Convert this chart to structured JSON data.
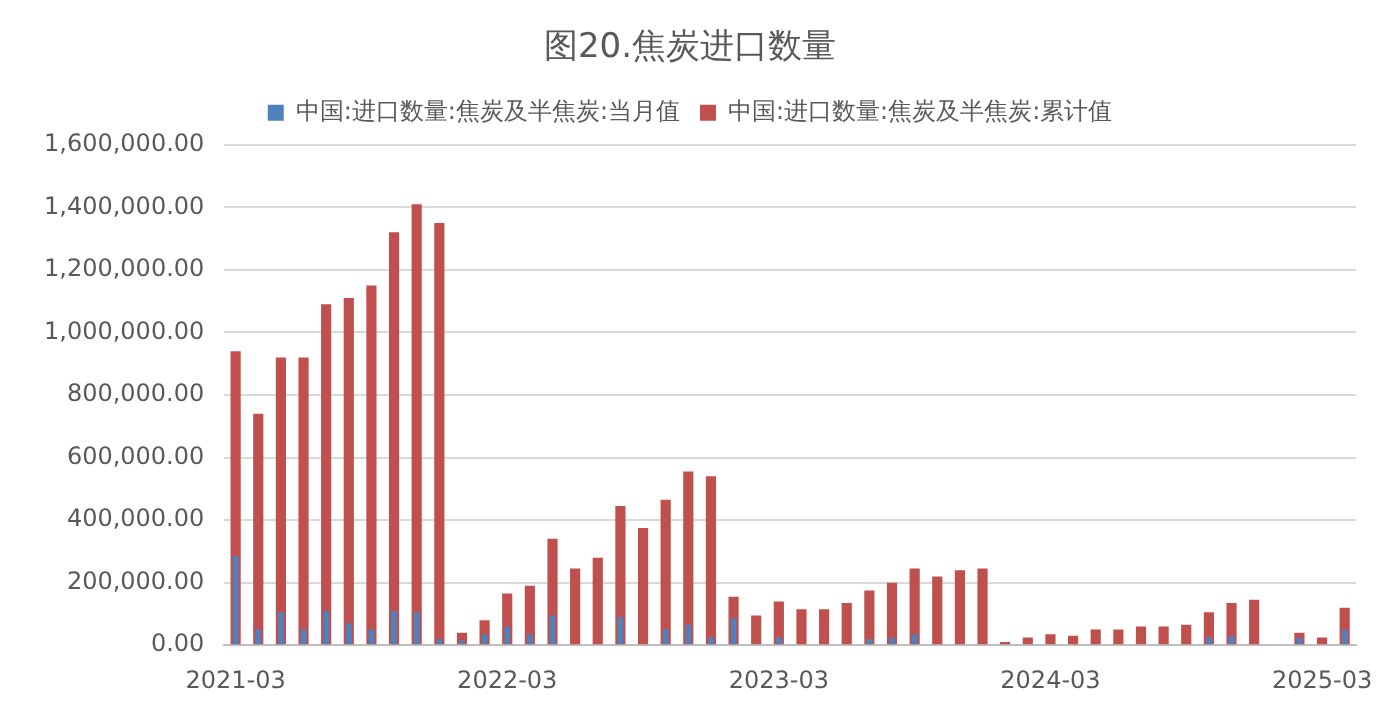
{
  "chart_data": {
    "type": "bar",
    "title": "图20.焦炭进口数量",
    "categories": [
      "2021-03",
      null,
      null,
      null,
      null,
      null,
      null,
      null,
      null,
      null,
      null,
      null,
      "2022-03",
      null,
      null,
      null,
      null,
      null,
      null,
      null,
      null,
      null,
      null,
      null,
      "2023-03",
      null,
      null,
      null,
      null,
      null,
      null,
      null,
      null,
      null,
      null,
      null,
      "2024-03",
      null,
      null,
      null,
      null,
      null,
      null,
      null,
      null,
      null,
      null,
      null,
      "2025-03",
      null
    ],
    "series": [
      {
        "name": "中国:进口数量:焦炭及半焦炭:当月值",
        "color": "#4f81bd",
        "values": [
          285000,
          50000,
          105000,
          50000,
          110000,
          70000,
          50000,
          110000,
          105000,
          20000,
          15000,
          35000,
          60000,
          35000,
          95000,
          null,
          null,
          90000,
          null,
          50000,
          65000,
          25000,
          85000,
          null,
          25000,
          null,
          null,
          null,
          20000,
          25000,
          35000,
          null,
          null,
          null,
          null,
          null,
          null,
          null,
          null,
          null,
          null,
          null,
          null,
          25000,
          30000,
          null,
          null,
          25000,
          null,
          50000
        ]
      },
      {
        "name": "中国:进口数量:焦炭及半焦炭:累计值",
        "color": "#c0504d",
        "values": [
          940000,
          740000,
          920000,
          920000,
          1090000,
          1110000,
          1150000,
          1320000,
          1410000,
          1350000,
          40000,
          80000,
          165000,
          190000,
          340000,
          245000,
          280000,
          445000,
          375000,
          465000,
          555000,
          540000,
          155000,
          95000,
          140000,
          115000,
          115000,
          135000,
          175000,
          200000,
          245000,
          220000,
          240000,
          245000,
          10000,
          25000,
          35000,
          30000,
          50000,
          50000,
          60000,
          60000,
          65000,
          105000,
          135000,
          145000,
          null,
          40000,
          25000,
          120000
        ]
      }
    ],
    "ylim": [
      0,
      1600000
    ],
    "yticks": [
      {
        "value": 0,
        "label": "0.00"
      },
      {
        "value": 200000,
        "label": "200,000.00"
      },
      {
        "value": 400000,
        "label": "400,000.00"
      },
      {
        "value": 600000,
        "label": "600,000.00"
      },
      {
        "value": 800000,
        "label": "800,000.00"
      },
      {
        "value": 1000000,
        "label": "1,000,000.00"
      },
      {
        "value": 1200000,
        "label": "1,200,000.00"
      },
      {
        "value": 1400000,
        "label": "1,400,000.00"
      },
      {
        "value": 1600000,
        "label": "1,600,000.00"
      }
    ],
    "grid": "y",
    "legend": "top"
  }
}
